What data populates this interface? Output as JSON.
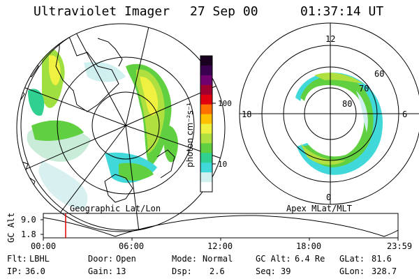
{
  "header": {
    "title": "Ultraviolet Imager",
    "date": "27 Sep 00",
    "time": "01:37:14 UT"
  },
  "left_panel": {
    "caption": "Geographic Lat/Lon"
  },
  "colorbar": {
    "label": "photon cm⁻²s⁻¹",
    "ticks": [
      "100",
      "10"
    ],
    "colors": [
      "#1a0020",
      "#3a0050",
      "#700070",
      "#a00030",
      "#e00010",
      "#ff7000",
      "#ffc000",
      "#f0f040",
      "#b0e040",
      "#60d040",
      "#30d090",
      "#40d8d8",
      "#d0f0f0",
      "#ffffff"
    ]
  },
  "right_panel": {
    "caption": "Apex MLat/MLT",
    "mlt_labels": [
      "12",
      "18",
      "6",
      "0"
    ],
    "mlat_labels": [
      "60",
      "70",
      "80"
    ]
  },
  "timeline": {
    "y_label": "GC Alt",
    "y_ticks": [
      "9.0",
      "1.8"
    ],
    "x_ticks": [
      "00:00",
      "06:00",
      "12:00",
      "18:00",
      "23:59"
    ],
    "marker_color": "#e00000"
  },
  "footer": {
    "filter": {
      "label": "Flt:",
      "value": "LBHL"
    },
    "ip": {
      "label": "IP:",
      "value": "36.0"
    },
    "door": {
      "label": "Door:",
      "value": "Open"
    },
    "gain": {
      "label": "Gain:",
      "value": "13"
    },
    "mode": {
      "label": "Mode:",
      "value": "Normal"
    },
    "dsp": {
      "label": "Dsp:",
      "value": "2.6"
    },
    "gc_alt": {
      "label": "GC Alt:",
      "value": "6.4 Re"
    },
    "seq": {
      "label": "Seq:",
      "value": "39"
    },
    "glat": {
      "label": "GLat:",
      "value": "81.6"
    },
    "glon": {
      "label": "GLon:",
      "value": "328.7"
    }
  }
}
